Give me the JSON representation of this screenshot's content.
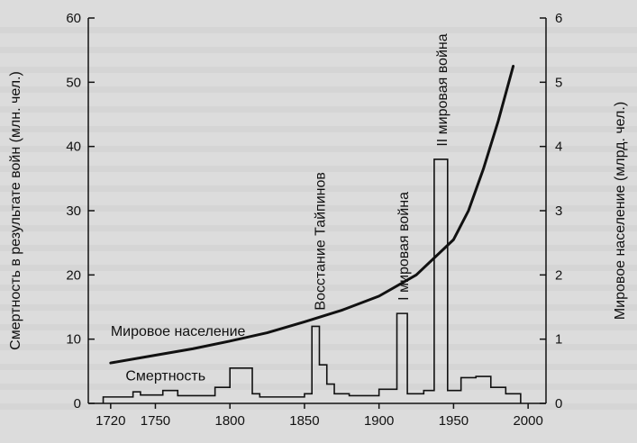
{
  "chart_data": {
    "type": "line",
    "title": "",
    "xlabel": "",
    "ylabel_left": "Смертность в результате войн (млн. чел.)",
    "ylabel_right": "Мировое население (млрд. чел.)",
    "xlim": [
      1705,
      2012
    ],
    "ylim_left": [
      0,
      60
    ],
    "ylim_right": [
      0,
      6
    ],
    "x_ticks": [
      1720,
      1750,
      1800,
      1850,
      1900,
      1950,
      2000
    ],
    "y_ticks_left": [
      0,
      10,
      20,
      30,
      40,
      50,
      60
    ],
    "y_ticks_right": [
      0,
      1,
      2,
      3,
      4,
      5,
      6
    ],
    "grid": false,
    "series": [
      {
        "name": "Мировое население",
        "axis": "right",
        "style": "line",
        "x": [
          1720,
          1750,
          1775,
          1800,
          1825,
          1850,
          1875,
          1900,
          1925,
          1950,
          1960,
          1970,
          1980,
          1990
        ],
        "y": [
          0.63,
          0.75,
          0.85,
          0.97,
          1.1,
          1.27,
          1.45,
          1.67,
          2.0,
          2.55,
          3.0,
          3.65,
          4.4,
          5.25
        ]
      },
      {
        "name": "Смертность",
        "axis": "left",
        "style": "step",
        "x": [
          1715,
          1735,
          1740,
          1755,
          1765,
          1790,
          1800,
          1815,
          1820,
          1850,
          1855,
          1860,
          1865,
          1870,
          1880,
          1900,
          1912,
          1919,
          1930,
          1937,
          1946,
          1955,
          1965,
          1975,
          1985,
          1995
        ],
        "y": [
          1,
          1.8,
          1.3,
          2,
          1.2,
          2.5,
          5.5,
          1.5,
          1,
          1.5,
          12,
          6,
          3,
          1.5,
          1.2,
          2.2,
          14,
          1.5,
          2,
          38,
          2,
          4,
          4.2,
          2.5,
          1.5,
          0
        ]
      }
    ],
    "annotations": [
      {
        "text": "Восстание Тайпинов",
        "x": 1860
      },
      {
        "text": "I мировая война",
        "x": 1916
      },
      {
        "text": "II мировая война",
        "x": 1942
      }
    ]
  }
}
